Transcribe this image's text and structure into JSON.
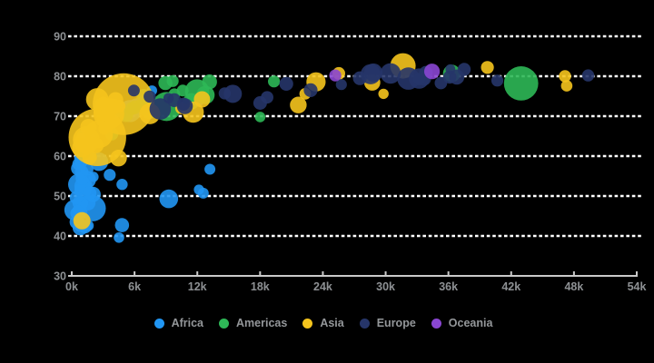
{
  "chart": {
    "title": "",
    "background_color": "#000000",
    "gridline_color": "#ffffff",
    "axis_line_color": "#c9c9c9",
    "tick_label_color": "#8d9093",
    "bubble_opacity": 0.9
  },
  "legend": {
    "position": "bottom",
    "label_color": "#94979a",
    "items": [
      {
        "label": "Africa",
        "color": "#2196f3"
      },
      {
        "label": "Americas",
        "color": "#2eb857"
      },
      {
        "label": "Asia",
        "color": "#f5c41d"
      },
      {
        "label": "Europe",
        "color": "#263569"
      },
      {
        "label": "Oceania",
        "color": "#8a46d2"
      }
    ]
  },
  "chart_data": {
    "type": "scatter",
    "subtype": "bubble",
    "title": "",
    "xlabel": "",
    "ylabel": "",
    "grid": "dashed-horizontal",
    "legend_position": "bottom",
    "x_axis": {
      "min": 0,
      "max": 54000,
      "tick_step": 6000,
      "tick_labels": [
        "0k",
        "6k",
        "12k",
        "18k",
        "24k",
        "30k",
        "36k",
        "42k",
        "48k",
        "54k"
      ]
    },
    "y_axis": {
      "min": 30,
      "max": 90,
      "tick_step": 10,
      "tick_labels": [
        "30",
        "40",
        "50",
        "60",
        "70",
        "80",
        "90"
      ]
    },
    "point_format": [
      "x_value",
      "y_value",
      "bubble_radius_px"
    ],
    "series": [
      {
        "name": "Africa",
        "color": "#2196f3",
        "points": [
          [
            6223,
            72.3,
            9.6
          ],
          [
            4797,
            42.7,
            7.8
          ],
          [
            1441,
            56.7,
            7.3
          ],
          [
            12570,
            50.7,
            6.0
          ],
          [
            1217,
            52.3,
            8.0
          ],
          [
            430,
            49.6,
            7.3
          ],
          [
            2042,
            50.4,
            8.4
          ],
          [
            706,
            44.7,
            6.7
          ],
          [
            1704,
            50.7,
            7.6
          ],
          [
            986,
            65.2,
            5.7
          ],
          [
            278,
            46.5,
            11.4
          ],
          [
            3632,
            55.3,
            6.6
          ],
          [
            1545,
            48.3,
            8.4
          ],
          [
            2082,
            54.8,
            5.6
          ],
          [
            5581,
            71.3,
            12.2
          ],
          [
            12154,
            51.6,
            5.6
          ],
          [
            641,
            58.0,
            6.8
          ],
          [
            691,
            52.9,
            12.0
          ],
          [
            13206,
            56.7,
            6.0
          ],
          [
            753,
            59.4,
            6.0
          ],
          [
            1328,
            60.0,
            8.8
          ],
          [
            942,
            56.0,
            7.5
          ],
          [
            579,
            46.4,
            6.0
          ],
          [
            1463,
            54.1,
            9.8
          ],
          [
            1569,
            42.6,
            6.1
          ],
          [
            414,
            45.7,
            6.4
          ],
          [
            12057,
            74.0,
            7.0
          ],
          [
            1045,
            59.4,
            8.5
          ],
          [
            759,
            48.3,
            7.9
          ],
          [
            1042,
            54.5,
            7.8
          ],
          [
            1803,
            64.2,
            6.5
          ],
          [
            10957,
            72.8,
            5.9
          ],
          [
            3820,
            71.2,
            9.7
          ],
          [
            824,
            42.1,
            8.6
          ],
          [
            4811,
            52.9,
            6.2
          ],
          [
            619,
            56.9,
            7.9
          ],
          [
            2014,
            46.9,
            14.3
          ],
          [
            7670,
            76.4,
            5.7
          ],
          [
            863,
            46.2,
            7.4
          ],
          [
            1598,
            65.5,
            5.4
          ],
          [
            1712,
            63.1,
            7.8
          ],
          [
            862,
            42.6,
            7.0
          ],
          [
            926,
            48.2,
            7.4
          ],
          [
            9270,
            49.3,
            10.3
          ],
          [
            2602,
            58.6,
            10.2
          ],
          [
            4513,
            39.6,
            5.8
          ],
          [
            1107,
            52.5,
            9.9
          ],
          [
            883,
            58.4,
            6.9
          ],
          [
            7093,
            73.9,
            7.6
          ],
          [
            1056,
            51.5,
            9.3
          ],
          [
            1271,
            42.4,
            7.7
          ],
          [
            470,
            43.5,
            7.8
          ]
        ]
      },
      {
        "name": "Americas",
        "color": "#2eb857",
        "points": [
          [
            12779,
            75.3,
            10.1
          ],
          [
            3822,
            65.6,
            7.4
          ],
          [
            9066,
            72.4,
            16.0
          ],
          [
            36319,
            80.7,
            9.6
          ],
          [
            13172,
            78.6,
            8.2
          ],
          [
            7007,
            72.9,
            10.3
          ],
          [
            9645,
            78.8,
            6.6
          ],
          [
            8948,
            78.3,
            7.7
          ],
          [
            6025,
            72.2,
            7.5
          ],
          [
            6873,
            75.0,
            8.0
          ],
          [
            5728,
            71.9,
            7.1
          ],
          [
            5186,
            70.3,
            7.8
          ],
          [
            1202,
            60.9,
            7.3
          ],
          [
            3548,
            70.2,
            7.2
          ],
          [
            7321,
            72.6,
            6.3
          ],
          [
            11978,
            76.2,
            13.3
          ],
          [
            2749,
            72.9,
            6.9
          ],
          [
            9809,
            75.5,
            6.4
          ],
          [
            4173,
            71.8,
            7.1
          ],
          [
            7409,
            71.4,
            9.3
          ],
          [
            19329,
            78.7,
            6.6
          ],
          [
            18009,
            69.8,
            5.8
          ],
          [
            42952,
            78.2,
            18.9
          ],
          [
            10611,
            76.4,
            6.5
          ],
          [
            11416,
            73.7,
            9.1
          ]
        ]
      },
      {
        "name": "Asia",
        "color": "#f5c41d",
        "points": [
          [
            975,
            43.8,
            9.5
          ],
          [
            29796,
            75.6,
            5.7
          ],
          [
            1391,
            64.1,
            14.8
          ],
          [
            1714,
            59.7,
            8.0
          ],
          [
            4959,
            73.0,
            34.0
          ],
          [
            39725,
            82.2,
            7.1
          ],
          [
            2452,
            64.7,
            31.7
          ],
          [
            3541,
            70.6,
            17.0
          ],
          [
            11606,
            71.0,
            11.7
          ],
          [
            4471,
            59.5,
            9.2
          ],
          [
            25523,
            80.7,
            7.0
          ],
          [
            31656,
            82.6,
            14.0
          ],
          [
            4519,
            72.5,
            7.0
          ],
          [
            1593,
            67.3,
            8.9
          ],
          [
            23348,
            78.6,
            10.6
          ],
          [
            47307,
            77.6,
            6.3
          ],
          [
            10461,
            72.0,
            6.6
          ],
          [
            12452,
            74.2,
            9.0
          ],
          [
            3096,
            66.8,
            6.4
          ],
          [
            944,
            62.1,
            10.5
          ],
          [
            1091,
            63.8,
            9.3
          ],
          [
            22316,
            75.6,
            6.4
          ],
          [
            2606,
            65.5,
            15.4
          ],
          [
            3190,
            71.7,
            12.6
          ],
          [
            21655,
            72.8,
            9.2
          ],
          [
            47143,
            80.0,
            6.7
          ],
          [
            3970,
            72.4,
            8.6
          ],
          [
            4185,
            74.1,
            8.5
          ],
          [
            28718,
            78.4,
            8.9
          ],
          [
            7458,
            70.6,
            11.5
          ],
          [
            2442,
            74.2,
            12.4
          ],
          [
            3025,
            73.4,
            6.6
          ],
          [
            2281,
            62.7,
            8.8
          ]
        ]
      },
      {
        "name": "Europe",
        "color": "#263569",
        "points": [
          [
            5937,
            76.4,
            6.5
          ],
          [
            36126,
            79.8,
            7.3
          ],
          [
            33693,
            79.4,
            7.6
          ],
          [
            7446,
            74.9,
            6.7
          ],
          [
            10681,
            73.0,
            7.2
          ],
          [
            14619,
            75.7,
            6.7
          ],
          [
            22833,
            76.5,
            7.6
          ],
          [
            35278,
            78.3,
            6.9
          ],
          [
            33207,
            79.3,
            6.8
          ],
          [
            30470,
            80.7,
            11.3
          ],
          [
            32170,
            79.4,
            12.3
          ],
          [
            27538,
            79.5,
            7.6
          ],
          [
            18009,
            73.3,
            7.5
          ],
          [
            36181,
            81.8,
            5.4
          ],
          [
            40676,
            78.9,
            6.6
          ],
          [
            28570,
            80.5,
            11.1
          ],
          [
            9254,
            74.5,
            5.7
          ],
          [
            36798,
            79.8,
            8.3
          ],
          [
            49357,
            80.2,
            6.7
          ],
          [
            15390,
            75.6,
            10.0
          ],
          [
            20510,
            78.1,
            7.6
          ],
          [
            10808,
            72.5,
            8.8
          ],
          [
            9787,
            74.0,
            7.6
          ],
          [
            18678,
            74.7,
            6.9
          ],
          [
            25768,
            77.9,
            6.1
          ],
          [
            28821,
            80.9,
            10.1
          ],
          [
            33860,
            80.9,
            7.4
          ],
          [
            37506,
            81.7,
            7.2
          ],
          [
            8458,
            71.8,
            11.8
          ],
          [
            33203,
            79.4,
            11.2
          ]
        ]
      },
      {
        "name": "Oceania",
        "color": "#8a46d2",
        "points": [
          [
            34435,
            81.2,
            8.6
          ],
          [
            25185,
            80.2,
            6.6
          ]
        ]
      }
    ]
  }
}
